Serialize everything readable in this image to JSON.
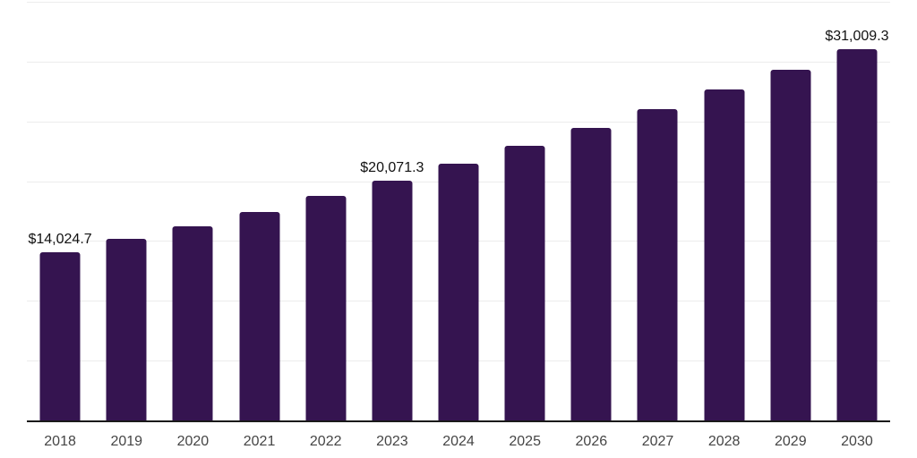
{
  "chart": {
    "background_color": "#ffffff",
    "bar_color": "#351450",
    "grid_color": "#ececec",
    "axis_line_color": "#1a1a1a",
    "tick_label_color": "#454545",
    "data_label_color": "#111111"
  },
  "chart_data": {
    "type": "bar",
    "title": "",
    "xlabel": "",
    "ylabel": "",
    "categories": [
      "2018",
      "2019",
      "2020",
      "2021",
      "2022",
      "2023",
      "2024",
      "2025",
      "2026",
      "2027",
      "2028",
      "2029",
      "2030"
    ],
    "values": [
      14024.7,
      15220,
      16260,
      17440,
      18800,
      20071.3,
      21470,
      22990,
      24420,
      25990,
      27640,
      29320,
      31009.3
    ],
    "data_labels": [
      {
        "index": 0,
        "text": "$14,024.7"
      },
      {
        "index": 5,
        "text": "$20,071.3"
      },
      {
        "index": 12,
        "text": "$31,009.3"
      }
    ],
    "ylim": [
      0,
      35000
    ],
    "gridline_step": 5000,
    "grid": true,
    "legend": "none",
    "note": "values without data labels are estimated from bar heights"
  }
}
